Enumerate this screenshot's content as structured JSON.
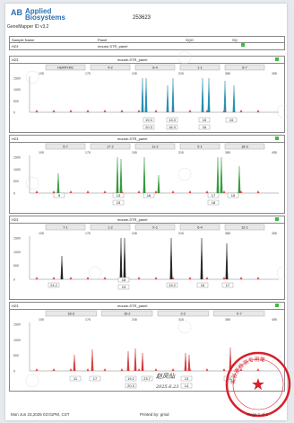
{
  "header": {
    "brand_line1": "Applied",
    "brand_line2": "Biosystems",
    "app_name": "GeneMapper ID v3.2",
    "run_id": "253623",
    "col_sample_name": "Sample Name",
    "col_panel": "Panel",
    "col_sqo": "SQO",
    "col_sq": "SQ",
    "sample": "H23",
    "panel": "mouse-STR_panel"
  },
  "footer": {
    "date": "Mon Jun 23,2025 03:01PM, CST",
    "printed_by": "Printed by: gmid",
    "page": "Page 1 of 1"
  },
  "signature": {
    "name": "赵凤仙",
    "date": "2025.6.23"
  },
  "stamp_text": "实验室检测专用章",
  "panels": [
    {
      "sample": "H23",
      "panel": "mouse-STR_panel",
      "color": "#1f8fb0",
      "markers": [
        "HUMTH01",
        "4-2",
        "6-4",
        "1-1",
        "6-7"
      ],
      "peak_labels": [
        "19.3",
        "20.3",
        "13.3",
        "16.3",
        "15",
        "16",
        "15"
      ]
    },
    {
      "sample": "H23",
      "panel": "mouse-STR_panel",
      "color": "#2f9a3a",
      "markers": [
        "5-7",
        "17-2",
        "11-2",
        "5-1",
        "18-3"
      ],
      "peak_labels": [
        "9",
        "13",
        "15",
        "16",
        "17",
        "18",
        "15"
      ]
    },
    {
      "sample": "H23",
      "panel": "mouse-STR_panel",
      "color": "#222222",
      "markers": [
        "7-1",
        "1-2",
        "X-1",
        "6-4",
        "12-1"
      ],
      "peak_labels": [
        "24.2",
        "18",
        "19",
        "19.2",
        "16",
        "17"
      ]
    },
    {
      "sample": "H23",
      "panel": "mouse-STR_panel",
      "color": "#d23a3a",
      "markers": [
        "18-3",
        "15-2",
        "2-2",
        "X-7"
      ],
      "peak_labels": [
        "11",
        "17",
        "19.2",
        "20.3",
        "23.7",
        "13",
        "14",
        "22"
      ]
    }
  ],
  "axis": {
    "x_ticks": [
      "105",
      "175",
      "245",
      "315",
      "385",
      "455"
    ],
    "y_ticks": [
      "1500",
      "1000",
      "500",
      "0"
    ]
  }
}
